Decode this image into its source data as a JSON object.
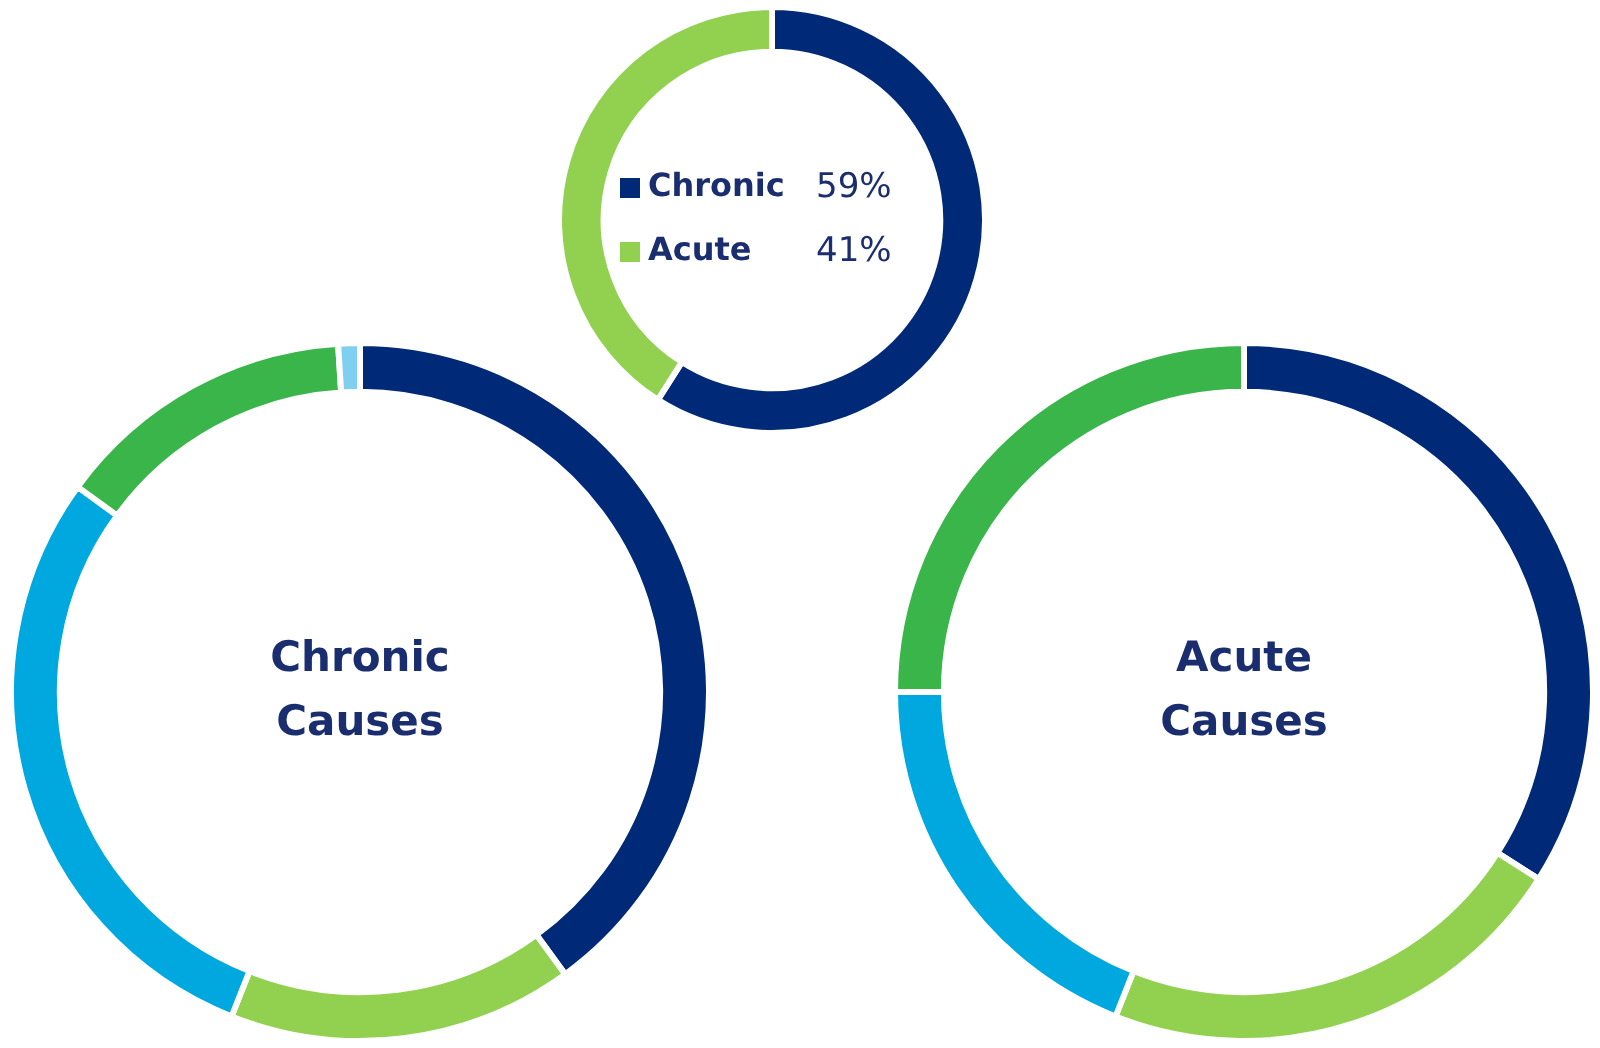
{
  "chart_data": [
    {
      "type": "donut",
      "categories": [
        "Chronic",
        "Acute"
      ],
      "values": [
        59,
        41
      ],
      "value_labels": [
        "59%",
        "41%"
      ],
      "colors": [
        "#002a77",
        "#92d050"
      ],
      "legend": "center"
    },
    {
      "type": "donut",
      "title": "Chronic Causes",
      "categories": [
        null,
        null,
        null,
        null,
        null
      ],
      "values": [
        40,
        16,
        29,
        14,
        1
      ],
      "colors": [
        "#002a77",
        "#92d050",
        "#00a8e0",
        "#39b54a",
        "#7fd0f0"
      ],
      "legend": false
    },
    {
      "type": "donut",
      "title": "Acute Causes",
      "categories": [
        null,
        null,
        null,
        null
      ],
      "values": [
        34,
        22,
        19,
        25
      ],
      "colors": [
        "#002a77",
        "#92d050",
        "#00a8e0",
        "#39b54a"
      ],
      "legend": false
    }
  ]
}
